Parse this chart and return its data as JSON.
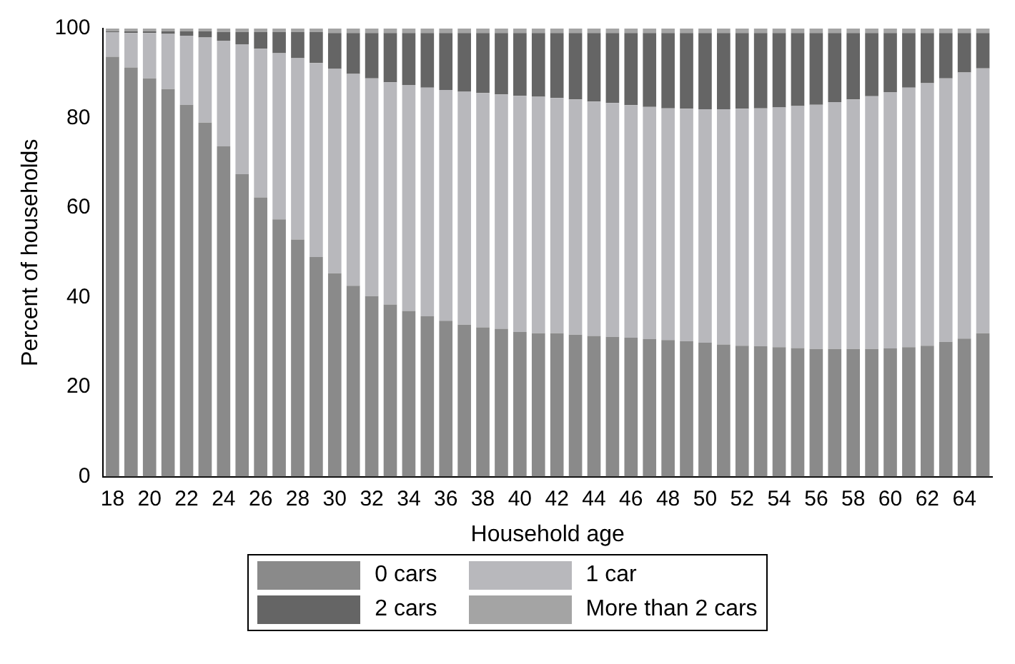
{
  "chart_data": {
    "type": "bar",
    "stacked": true,
    "xlabel": "Household age",
    "ylabel": "Percent of households",
    "categories": [
      "18",
      null,
      "20",
      null,
      "22",
      null,
      "24",
      null,
      "26",
      null,
      "28",
      null,
      "30",
      null,
      "32",
      null,
      "34",
      null,
      "36",
      null,
      "38",
      null,
      "40",
      null,
      "42",
      null,
      "44",
      null,
      "46",
      null,
      "48",
      null,
      "50",
      null,
      "52",
      null,
      "54",
      null,
      "56",
      null,
      "58",
      null,
      "60",
      null,
      "62",
      null,
      "64",
      null
    ],
    "series": [
      {
        "name": "0 cars",
        "color": "#8a8a8a",
        "values": [
          93.7,
          91.3,
          88.9,
          86.5,
          83.0,
          79.0,
          73.7,
          67.5,
          62.3,
          57.4,
          52.9,
          49.0,
          45.4,
          42.6,
          40.3,
          38.4,
          37.0,
          35.8,
          34.8,
          33.9,
          33.3,
          33.0,
          32.3,
          32.0,
          32.0,
          31.7,
          31.4,
          31.2,
          31.0,
          30.7,
          30.5,
          30.2,
          29.9,
          29.5,
          29.2,
          29.1,
          28.9,
          28.7,
          28.5,
          28.5,
          28.5,
          28.5,
          28.6,
          28.9,
          29.2,
          30.1,
          30.8,
          32.0
        ]
      },
      {
        "name": "1 car",
        "color": "#b8b8bc",
        "values": [
          5.5,
          7.7,
          10.1,
          12.3,
          15.4,
          19.0,
          23.6,
          29.0,
          33.2,
          37.1,
          40.5,
          43.3,
          45.6,
          47.3,
          48.6,
          49.6,
          50.4,
          51.0,
          51.5,
          52.0,
          52.3,
          52.3,
          52.7,
          52.8,
          52.5,
          52.5,
          52.3,
          52.2,
          51.9,
          51.8,
          51.7,
          51.9,
          52.1,
          52.5,
          52.9,
          53.1,
          53.5,
          54.0,
          54.5,
          55.1,
          55.7,
          56.4,
          57.2,
          57.9,
          58.6,
          58.8,
          59.4,
          59.1
        ]
      },
      {
        "name": "2 cars",
        "color": "#656565",
        "values": [
          0.2,
          0.4,
          0.4,
          0.6,
          1.0,
          1.4,
          1.9,
          2.7,
          3.7,
          4.7,
          5.8,
          6.9,
          8.0,
          9.1,
          10.1,
          11.0,
          11.6,
          12.2,
          12.7,
          13.1,
          13.4,
          13.7,
          14.0,
          14.2,
          14.5,
          14.8,
          15.3,
          15.6,
          16.1,
          16.5,
          16.8,
          16.9,
          17.0,
          17.0,
          16.9,
          16.8,
          16.6,
          16.3,
          16.0,
          15.4,
          14.8,
          14.1,
          13.2,
          12.2,
          11.2,
          10.1,
          8.8,
          7.9
        ]
      },
      {
        "name": "More than 2 cars",
        "color": "#a4a4a4",
        "values": [
          0.6,
          0.6,
          0.6,
          0.6,
          0.6,
          0.6,
          0.8,
          0.8,
          0.8,
          0.8,
          0.8,
          0.8,
          1.0,
          1.0,
          1.0,
          1.0,
          1.0,
          1.0,
          1.0,
          1.0,
          1.0,
          1.0,
          1.0,
          1.0,
          1.0,
          1.0,
          1.0,
          1.0,
          1.0,
          1.0,
          1.0,
          1.0,
          1.0,
          1.0,
          1.0,
          1.0,
          1.0,
          1.0,
          1.0,
          1.0,
          1.0,
          1.0,
          1.0,
          1.0,
          1.0,
          1.0,
          1.0,
          1.0
        ]
      }
    ],
    "ylim": [
      0,
      100
    ],
    "yticks": [
      0,
      20,
      40,
      60,
      80,
      100
    ],
    "grid": false,
    "legend": "bottom"
  }
}
